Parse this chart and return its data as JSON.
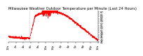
{
  "title": "Milwaukee Weather Outdoor Temperature per Minute (Last 24 Hours)",
  "line_color": "#ff0000",
  "background_color": "#ffffff",
  "y_ticks": [
    41,
    43,
    45,
    47,
    49,
    51,
    53,
    55,
    57,
    59,
    61,
    63,
    65,
    67
  ],
  "ylim": [
    40.5,
    68
  ],
  "xlim": [
    0,
    1440
  ],
  "vline_x": 340,
  "vline_color": "#888888",
  "title_fontsize": 3.8,
  "tick_fontsize": 2.8,
  "linewidth": 0.35
}
